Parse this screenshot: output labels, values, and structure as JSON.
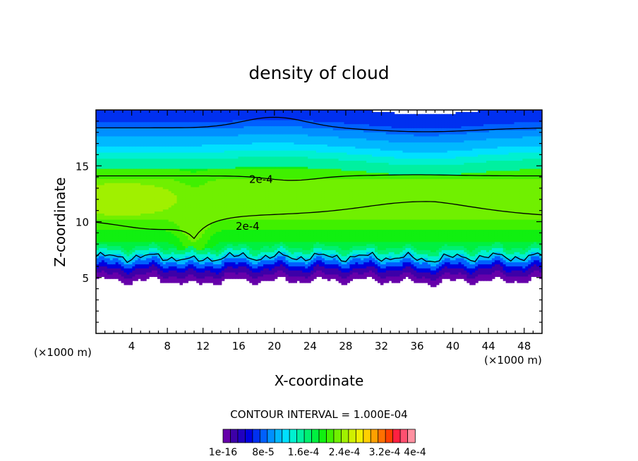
{
  "chart_data": {
    "type": "heatmap",
    "title": "density of cloud",
    "xlabel": "X-coordinate",
    "ylabel": "Z-coordinate",
    "x_unit": "(×1000 m)",
    "z_unit": "(×1000 m)",
    "xlim": [
      0,
      50
    ],
    "ylim": [
      0,
      20
    ],
    "x_ticks": [
      "4",
      "8",
      "12",
      "16",
      "20",
      "24",
      "28",
      "32",
      "36",
      "40",
      "44",
      "48"
    ],
    "x_tick_values": [
      4,
      8,
      12,
      16,
      20,
      24,
      28,
      32,
      36,
      40,
      44,
      48
    ],
    "y_ticks": [
      "5",
      "10",
      "15"
    ],
    "y_tick_values": [
      5,
      10,
      15
    ],
    "contour_interval_text": "CONTOUR INTERVAL = 1.000E-04",
    "contour_labels": [
      {
        "text": "2e-4",
        "x": 18.5,
        "z": 13.8
      },
      {
        "text": "2e-4",
        "x": 17.0,
        "z": 9.6
      }
    ],
    "colorbar": {
      "colors": [
        "#6600aa",
        "#3d00a8",
        "#2000c0",
        "#0000e0",
        "#0030f0",
        "#0060ff",
        "#0090ff",
        "#00b8ff",
        "#00e0ff",
        "#00f0d0",
        "#00f0a0",
        "#00f070",
        "#00f040",
        "#10f010",
        "#40f000",
        "#70f000",
        "#a0f000",
        "#d0f000",
        "#f0f000",
        "#ffd000",
        "#ffa000",
        "#ff7000",
        "#ff4000",
        "#ff2040",
        "#ff5070",
        "#ff90a0"
      ],
      "tick_labels": [
        "1e-16",
        "8e-5",
        "1.6e-4",
        "2.4e-4",
        "3.2e-4",
        "4e-4"
      ]
    }
  }
}
